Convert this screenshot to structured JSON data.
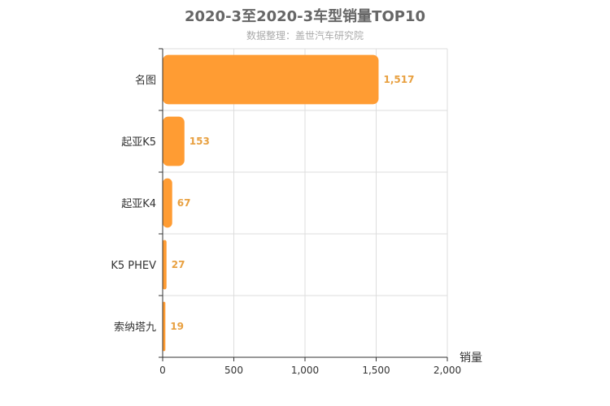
{
  "chart": {
    "title": "2020-3至2020-3车型销量TOP10",
    "subtitle": "数据整理：盖世汽车研究院"
  },
  "chart_data": {
    "type": "bar",
    "orientation": "horizontal",
    "title": "2020-3至2020-3车型销量TOP10",
    "subtitle": "数据整理：盖世汽车研究院",
    "categories": [
      "名图",
      "起亚K5",
      "起亚K4",
      "K5 PHEV",
      "索纳塔九"
    ],
    "values": [
      1517,
      153,
      67,
      27,
      19
    ],
    "value_labels": [
      "1,517",
      "153",
      "67",
      "27",
      "19"
    ],
    "xlabel": "销量",
    "ylabel": "",
    "xlim": [
      0,
      2000
    ],
    "x_ticks": [
      0,
      500,
      1000,
      1500,
      2000
    ],
    "x_tick_labels": [
      "0",
      "500",
      "1,000",
      "1,500",
      "2,000"
    ],
    "grid": true,
    "bar_color": "#ff9c33",
    "label_color": "#e8a040"
  }
}
